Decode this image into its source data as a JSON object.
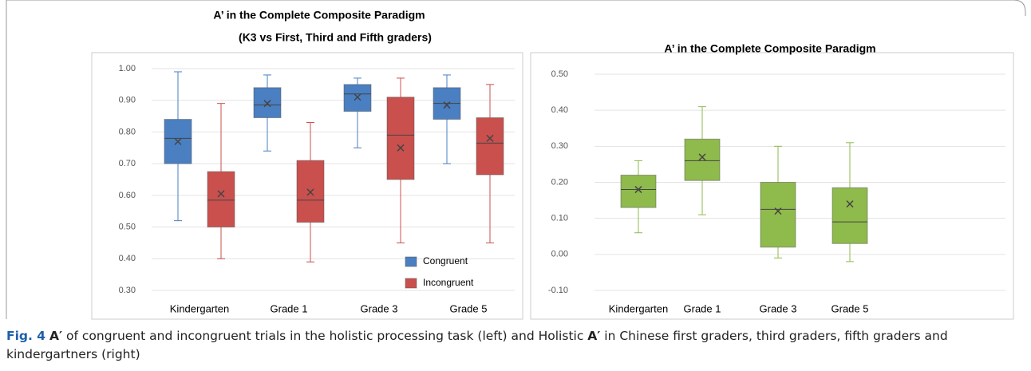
{
  "chart_data": [
    {
      "type": "box",
      "title": "A’ in the Complete Composite Paradigm",
      "subtitle": "(K3 vs First, Third and Fifth graders)",
      "categories": [
        "Kindergarten",
        "Grade 1",
        "Grade 3",
        "Grade 5"
      ],
      "series": [
        {
          "name": "Congruent",
          "color": "#4a7fc1",
          "values": [
            {
              "min": 0.52,
              "q1": 0.7,
              "median": 0.78,
              "q3": 0.84,
              "max": 0.99,
              "mean": 0.77
            },
            {
              "min": 0.74,
              "q1": 0.845,
              "median": 0.885,
              "q3": 0.94,
              "max": 0.98,
              "mean": 0.89
            },
            {
              "min": 0.75,
              "q1": 0.865,
              "median": 0.92,
              "q3": 0.95,
              "max": 0.97,
              "mean": 0.91
            },
            {
              "min": 0.7,
              "q1": 0.84,
              "median": 0.89,
              "q3": 0.94,
              "max": 0.98,
              "mean": 0.885
            }
          ]
        },
        {
          "name": "Incongruent",
          "color": "#c9504d",
          "values": [
            {
              "min": 0.4,
              "q1": 0.5,
              "median": 0.585,
              "q3": 0.675,
              "max": 0.89,
              "mean": 0.605
            },
            {
              "min": 0.39,
              "q1": 0.515,
              "median": 0.585,
              "q3": 0.71,
              "max": 0.83,
              "mean": 0.61
            },
            {
              "min": 0.45,
              "q1": 0.65,
              "median": 0.79,
              "q3": 0.91,
              "max": 0.97,
              "mean": 0.75
            },
            {
              "min": 0.45,
              "q1": 0.665,
              "median": 0.765,
              "q3": 0.845,
              "max": 0.95,
              "mean": 0.78
            }
          ]
        }
      ],
      "ylim": [
        0.3,
        1.0
      ],
      "yticks": [
        {
          "value": 0.3,
          "label": "0.30"
        },
        {
          "value": 0.4,
          "label": "0.40"
        },
        {
          "value": 0.5,
          "label": "0.50"
        },
        {
          "value": 0.6,
          "label": "0.60"
        },
        {
          "value": 0.7,
          "label": "0.70"
        },
        {
          "value": 0.8,
          "label": "0.80"
        },
        {
          "value": 0.9,
          "label": "0.90"
        },
        {
          "value": 1.0,
          "label": "1.00"
        }
      ],
      "grid": true,
      "legend": "lower right"
    },
    {
      "type": "box",
      "title": "A’ in the Complete Composite Paradigm",
      "categories": [
        "Kindergarten",
        "Grade 1",
        "Grade 3",
        "Grade 5"
      ],
      "series": [
        {
          "color": "#8fba4c",
          "values": [
            {
              "min": 0.06,
              "q1": 0.13,
              "median": 0.18,
              "q3": 0.22,
              "max": 0.26,
              "mean": 0.18
            },
            {
              "min": 0.11,
              "q1": 0.205,
              "median": 0.26,
              "q3": 0.32,
              "max": 0.41,
              "mean": 0.27
            },
            {
              "min": -0.01,
              "q1": 0.02,
              "median": 0.125,
              "q3": 0.2,
              "max": 0.3,
              "mean": 0.12
            },
            {
              "min": -0.02,
              "q1": 0.03,
              "median": 0.09,
              "q3": 0.185,
              "max": 0.31,
              "mean": 0.14
            }
          ]
        }
      ],
      "ylim": [
        -0.1,
        0.5
      ],
      "yticks": [
        {
          "value": -0.1,
          "label": "-0.10"
        },
        {
          "value": 0.0,
          "label": "0.00"
        },
        {
          "value": 0.1,
          "label": "0.10"
        },
        {
          "value": 0.2,
          "label": "0.20"
        },
        {
          "value": 0.3,
          "label": "0.30"
        },
        {
          "value": 0.4,
          "label": "0.40"
        },
        {
          "value": 0.5,
          "label": "0.50"
        }
      ],
      "grid": true
    }
  ],
  "caption": [
    "Fig. 4",
    "A′",
    " of congruent and incongruent trials in the holistic processing task (left) and Holistic ",
    "A′",
    " in Chinese first graders, third graders, fifth graders and kindergartners (right)"
  ]
}
